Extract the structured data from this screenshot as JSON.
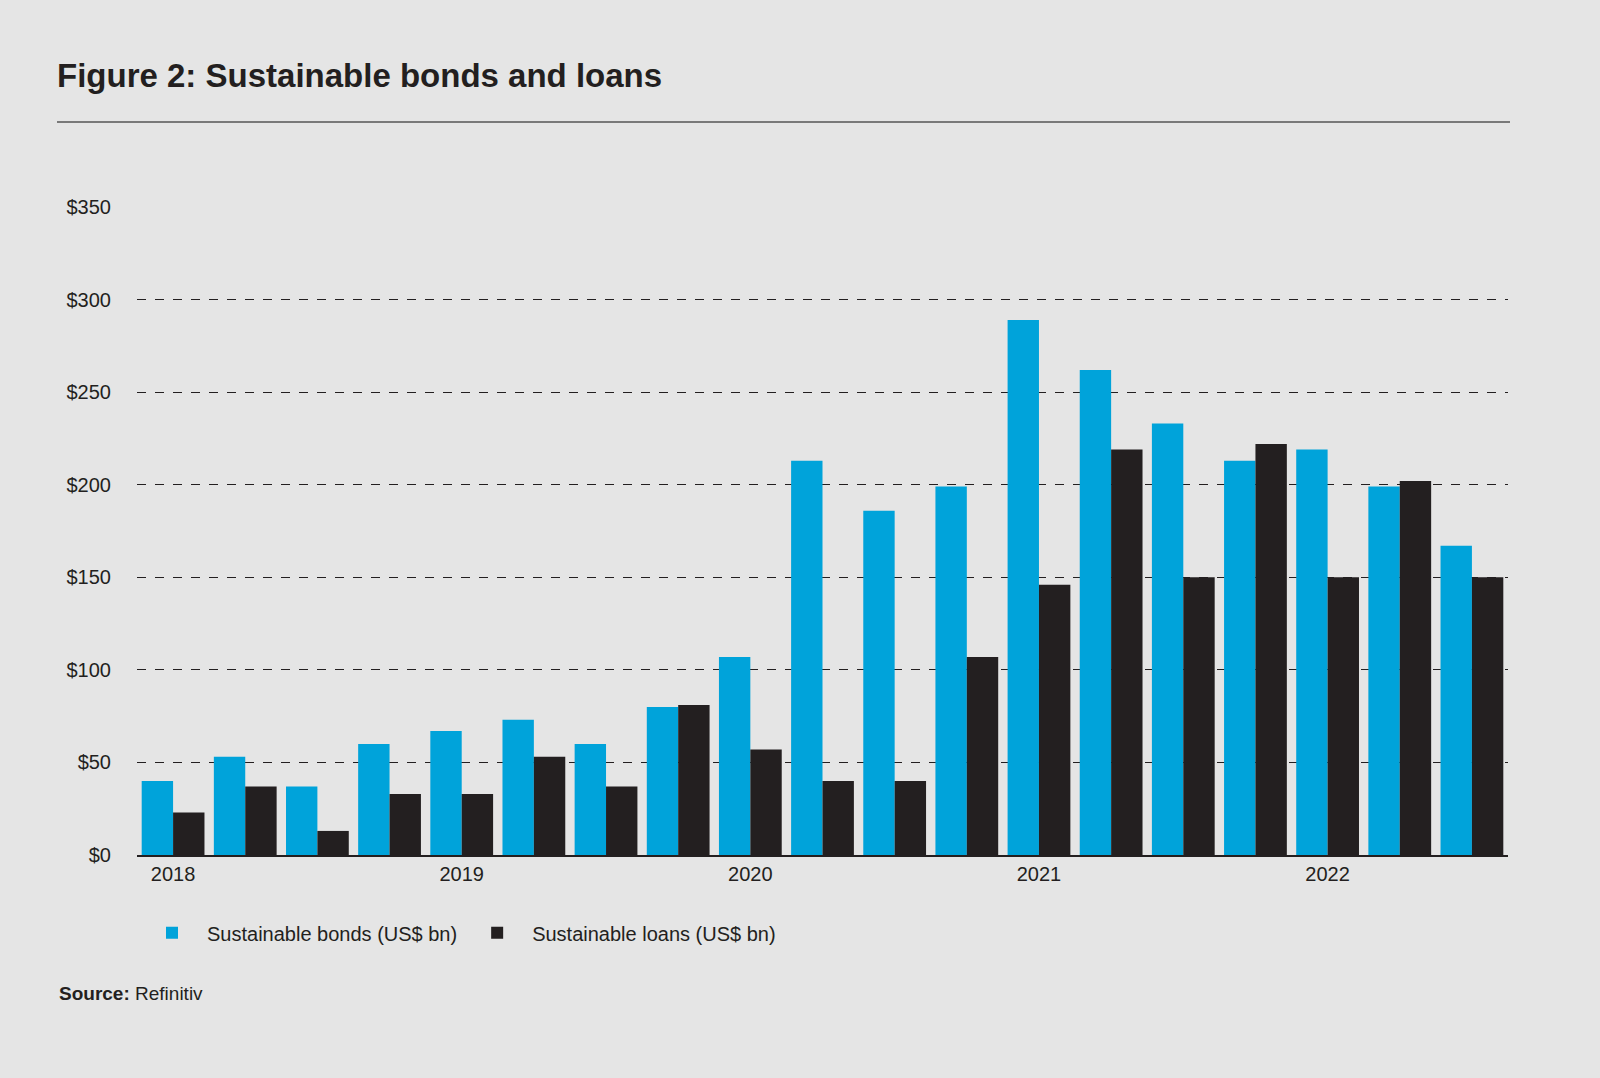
{
  "chart_data": {
    "type": "bar",
    "title": "Figure 2: Sustainable bonds and loans",
    "source": "Refinitiv",
    "source_label": "Source:",
    "categories": [
      "2018",
      null,
      null,
      null,
      "2019",
      null,
      null,
      null,
      "2020",
      null,
      null,
      null,
      "2021",
      null,
      null,
      null,
      "2022",
      null,
      null
    ],
    "series": [
      {
        "name": "Sustainable bonds (US$ bn)",
        "color": "#00a3da",
        "values": [
          40,
          53,
          37,
          60,
          67,
          73,
          60,
          80,
          107,
          213,
          186,
          199,
          289,
          262,
          233,
          213,
          219,
          199,
          167
        ]
      },
      {
        "name": "Sustainable loans (US$ bn)",
        "color": "#231f20",
        "values": [
          23,
          37,
          13,
          33,
          33,
          53,
          37,
          81,
          57,
          40,
          40,
          107,
          146,
          219,
          150,
          222,
          150,
          202,
          150
        ]
      }
    ],
    "ylim": [
      0,
      350
    ],
    "yticks": [
      {
        "value": 0,
        "label": "$0"
      },
      {
        "value": 50,
        "label": "$50"
      },
      {
        "value": 100,
        "label": "$100"
      },
      {
        "value": 150,
        "label": "$150"
      },
      {
        "value": 200,
        "label": "$200"
      },
      {
        "value": 250,
        "label": "$250"
      },
      {
        "value": 300,
        "label": "$300"
      },
      {
        "value": 350,
        "label": "$350"
      }
    ],
    "grid": true,
    "legend": "bottom left"
  }
}
